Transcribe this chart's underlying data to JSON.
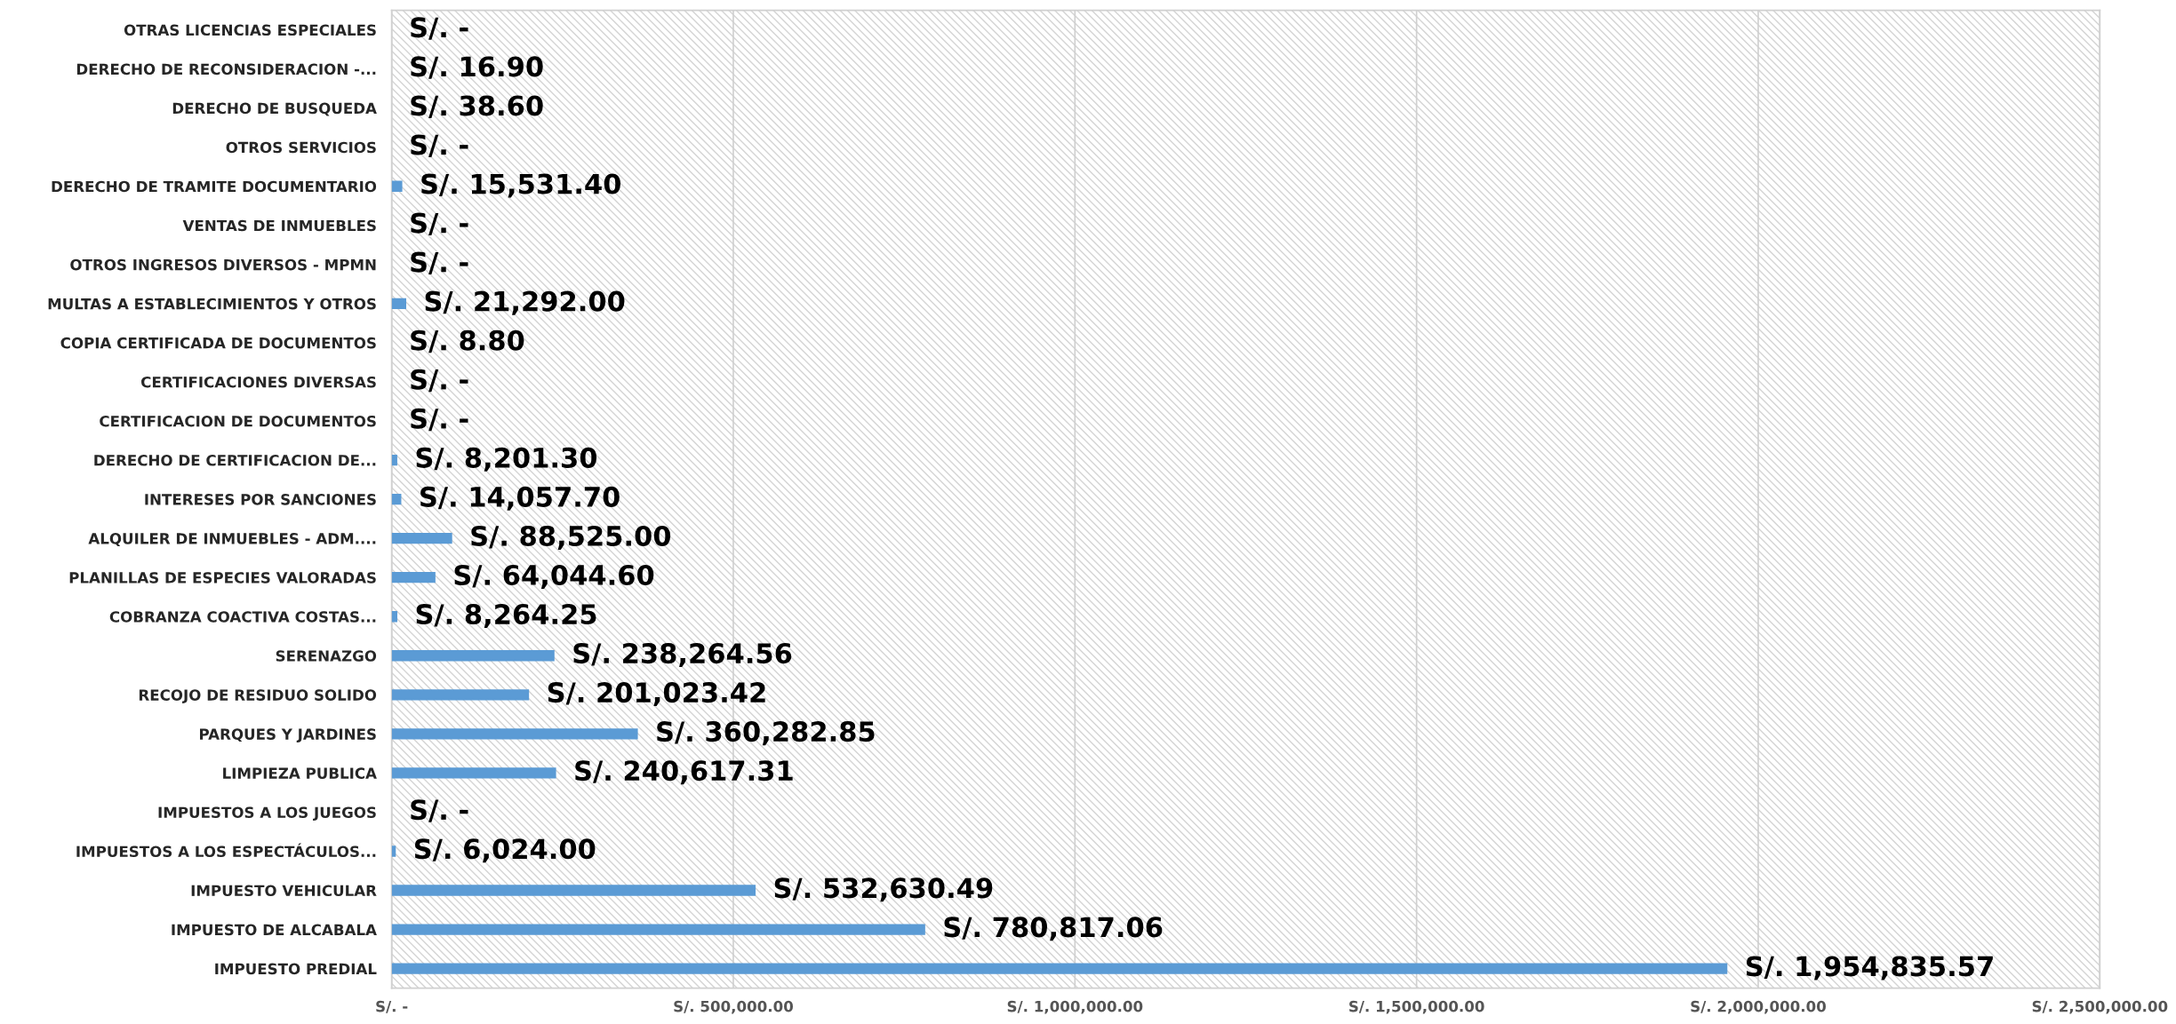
{
  "chart_data": {
    "type": "bar",
    "orientation": "horizontal",
    "categories": [
      "OTRAS LICENCIAS ESPECIALES",
      "DERECHO DE RECONSIDERACION -...",
      "DERECHO DE BUSQUEDA",
      "OTROS SERVICIOS",
      "DERECHO DE TRAMITE DOCUMENTARIO",
      "VENTAS DE INMUEBLES",
      "OTROS INGRESOS DIVERSOS - MPMN",
      "MULTAS A ESTABLECIMIENTOS Y OTROS",
      "COPIA CERTIFICADA DE DOCUMENTOS",
      "CERTIFICACIONES DIVERSAS",
      "CERTIFICACION DE DOCUMENTOS",
      "DERECHO DE CERTIFICACION DE...",
      "INTERESES POR SANCIONES",
      "ALQUILER DE INMUEBLES - ADM....",
      "PLANILLAS DE ESPECIES VALORADAS",
      "COBRANZA COACTIVA COSTAS...",
      "SERENAZGO",
      "RECOJO DE RESIDUO SOLIDO",
      "PARQUES Y JARDINES",
      "LIMPIEZA PUBLICA",
      "IMPUESTOS A LOS JUEGOS",
      "IMPUESTOS A LOS ESPECTÁCULOS...",
      "IMPUESTO VEHICULAR",
      "IMPUESTO DE ALCABALA",
      "IMPUESTO PREDIAL"
    ],
    "values": [
      0,
      16.9,
      38.6,
      0,
      15531.4,
      0,
      0,
      21292,
      8.8,
      0,
      0,
      8201.3,
      14057.7,
      88525,
      64044.6,
      8264.25,
      238264.56,
      201023.42,
      360282.85,
      240617.31,
      0,
      6024,
      532630.49,
      780817.06,
      1954835.57
    ],
    "value_labels": [
      "S/. -",
      "S/. 16.90",
      "S/. 38.60",
      "S/. -",
      "S/. 15,531.40",
      "S/. -",
      "S/. -",
      "S/. 21,292.00",
      "S/. 8.80",
      "S/. -",
      "S/. -",
      "S/. 8,201.30",
      "S/. 14,057.70",
      "S/. 88,525.00",
      "S/. 64,044.60",
      "S/. 8,264.25",
      "S/. 238,264.56",
      "S/. 201,023.42",
      "S/. 360,282.85",
      "S/. 240,617.31",
      "S/. -",
      "S/. 6,024.00",
      "S/. 532,630.49",
      "S/. 780,817.06",
      "S/. 1,954,835.57"
    ],
    "color": "#5b9bd5",
    "xlim": [
      0,
      2500000
    ],
    "xticks": [
      {
        "value": 0,
        "label": "S/. -"
      },
      {
        "value": 500000,
        "label": "S/. 500,000.00"
      },
      {
        "value": 1000000,
        "label": "S/. 1,000,000.00"
      },
      {
        "value": 1500000,
        "label": "S/. 1,500,000.00"
      },
      {
        "value": 2000000,
        "label": "S/. 2,000,000.00"
      },
      {
        "value": 2500000,
        "label": "S/. 2,500,000.00"
      }
    ],
    "grid": "x",
    "legend": false
  }
}
